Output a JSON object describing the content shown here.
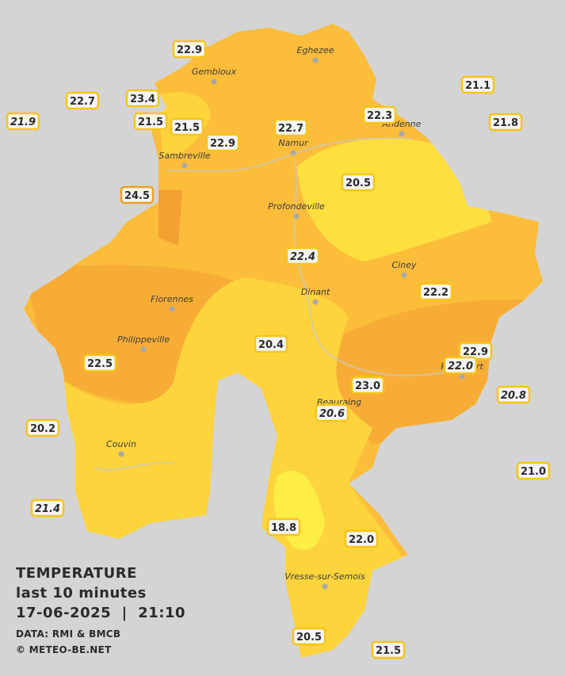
{
  "title": "TEMPERATURE",
  "subtitle": "last 10 minutes",
  "timestamp": "17-06-2025  |  21:10",
  "credits": [
    "DATA: RMI & BMCB",
    "© METEO-BE.NET"
  ],
  "cities": [
    "Eghezee",
    "Gembloux",
    "Andenne",
    "Namur",
    "Sambreville",
    "Profondeville",
    "Ciney",
    "Florennes",
    "Dinant",
    "Philippeville",
    "Rochefort",
    "Beauraing",
    "Couvin",
    "Vresse-sur-Semois"
  ],
  "stations": [
    "22.9",
    "22.7",
    "23.4",
    "21.9",
    "21.5",
    "21.5",
    "22.9",
    "22.7",
    "22.3",
    "21.1",
    "21.8",
    "24.5",
    "20.5",
    "22.4",
    "22.2",
    "20.4",
    "22.5",
    "22.9",
    "22.0",
    "23.0",
    "20.6",
    "20.8",
    "20.2",
    "21.0",
    "21.4",
    "18.8",
    "22.0",
    "20.5",
    "21.5"
  ]
}
